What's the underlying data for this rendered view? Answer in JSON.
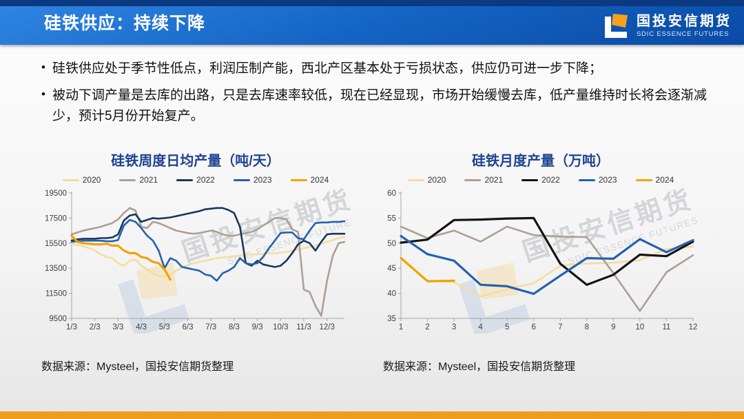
{
  "slide": {
    "title": "硅铁供应：持续下降",
    "logo": {
      "name_cn": "国投安信期货",
      "name_en": "SDIC ESSENCE FUTURES"
    },
    "bullets": [
      "硅铁供应处于季节性低点，利润压制产能，西北产区基本处于亏损状态，供应仍可进一步下降；",
      "被动下调产量是去库的出路，只是去库速率较低，现在已经显现，市场开始缓慢去库，低产量维持时长将会逐渐减少，预计5月份开始复产。"
    ],
    "captions": {
      "left": "数据来源：Mysteel，国投安信期货整理",
      "right": "数据来源：Mysteel，国投安信期货整理"
    },
    "watermark": {
      "text_cn": "国投安信期货",
      "text_en": "SDIC ESSENCE FUTURES"
    },
    "colors": {
      "header_blue": "#0c3a82",
      "title_blue": "#1f4391",
      "accent_orange": "#ef9d1f",
      "logo_orange": "#f5a11c"
    }
  },
  "chart_data": [
    {
      "type": "line",
      "title": "硅铁周度日均产量（吨/天）",
      "legend_position": "top",
      "grid": false,
      "ylim": [
        9500,
        19500
      ],
      "yticks": [
        9500,
        11500,
        13500,
        15500,
        17500,
        19500
      ],
      "x_count": 48,
      "x_tick_labels": [
        "1/3",
        "2/3",
        "3/3",
        "4/3",
        "5/3",
        "6/3",
        "7/3",
        "8/3",
        "9/3",
        "10/3",
        "11/3",
        "12/3"
      ],
      "x_tick_indices": [
        0,
        4,
        8,
        12,
        16,
        20,
        24,
        28,
        32,
        36,
        40,
        44
      ],
      "series": [
        {
          "name": "2020",
          "color": "#f4dda0",
          "values": [
            15450,
            15350,
            15250,
            15100,
            14900,
            14600,
            14400,
            14300,
            13900,
            13700,
            14100,
            14200,
            13700,
            13400,
            13100,
            12900,
            12850,
            13000,
            13300,
            13600,
            13750,
            13900,
            14000,
            14100,
            14200,
            14300,
            14350,
            14400,
            14450,
            14500,
            14550,
            14600,
            14600,
            14650,
            14700,
            14700,
            14750,
            14800,
            14900,
            15000,
            15100,
            15200,
            15300,
            15450,
            15600,
            15750,
            15900,
            16000
          ]
        },
        {
          "name": "2021",
          "color": "#ac9f93",
          "values": [
            16200,
            16350,
            16500,
            16600,
            16700,
            16800,
            16950,
            17100,
            17400,
            17900,
            18300,
            18100,
            16800,
            16700,
            17200,
            17100,
            16900,
            16700,
            16500,
            16400,
            16300,
            16250,
            16300,
            16400,
            16500,
            16400,
            16200,
            16100,
            16100,
            16200,
            16300,
            16400,
            16600,
            16900,
            17200,
            17500,
            17500,
            17400,
            16600,
            16400,
            11800,
            11600,
            10500,
            9700,
            12500,
            14500,
            15500,
            15600
          ]
        },
        {
          "name": "2022",
          "color": "#17375e",
          "values": [
            15700,
            15800,
            15850,
            15850,
            15850,
            15900,
            15900,
            15950,
            16200,
            17300,
            17700,
            17800,
            17200,
            17350,
            17500,
            17450,
            17500,
            17550,
            17650,
            17750,
            17850,
            17950,
            18050,
            18200,
            18250,
            18300,
            18300,
            18150,
            17900,
            16800,
            13900,
            13700,
            14100,
            13800,
            13700,
            13600,
            13700,
            14100,
            14700,
            15400,
            15700,
            15500,
            14900,
            15600,
            16200,
            16250,
            16250,
            16250
          ]
        },
        {
          "name": "2023",
          "color": "#2361b0",
          "values": [
            15600,
            15650,
            15700,
            15700,
            15700,
            15700,
            15650,
            15650,
            15750,
            16900,
            17350,
            17200,
            16700,
            16100,
            15700,
            14900,
            13500,
            14300,
            14100,
            13600,
            13500,
            13400,
            13300,
            13000,
            12900,
            12500,
            13100,
            13300,
            13600,
            14300,
            13900,
            13800,
            13900,
            14400,
            15100,
            15700,
            16300,
            16350,
            16350,
            15900,
            15800,
            16500,
            17100,
            17150,
            17150,
            17200,
            17200,
            17250
          ]
        },
        {
          "name": "2024",
          "color": "#f2a200",
          "emphasis": true,
          "values": [
            16100,
            15600,
            15500,
            15450,
            15400,
            15400,
            15450,
            15300,
            15300,
            14900,
            14700,
            14700,
            14400,
            14300,
            14000,
            13900,
            13400,
            12600
          ]
        }
      ]
    },
    {
      "type": "line",
      "title": "硅铁月度产量（万吨）",
      "legend_position": "top",
      "grid": false,
      "ylim": [
        35,
        60
      ],
      "yticks": [
        35,
        40,
        45,
        50,
        55,
        60
      ],
      "x_count": 12,
      "x_tick_labels": [
        "1",
        "2",
        "3",
        "4",
        "5",
        "6",
        "7",
        "8",
        "9",
        "10",
        "11",
        "12"
      ],
      "x_tick_indices": [
        0,
        1,
        2,
        3,
        4,
        5,
        6,
        7,
        8,
        9,
        10,
        11
      ],
      "series": [
        {
          "name": "2020",
          "color": "#f4dda0",
          "values": [
            47.2,
            42.5,
            42.2,
            39.4,
            40.8,
            42.0,
            45.5,
            45.9,
            46.1,
            46.6,
            48.8,
            49.3
          ]
        },
        {
          "name": "2021",
          "color": "#ac9f93",
          "values": [
            53.3,
            51.0,
            52.5,
            50.3,
            53.3,
            51.6,
            51.3,
            51.2,
            44.0,
            36.5,
            44.2,
            47.6
          ]
        },
        {
          "name": "2022",
          "color": "#141414",
          "emphasis": true,
          "values": [
            50.1,
            50.7,
            54.6,
            54.7,
            54.9,
            55.0,
            45.9,
            41.7,
            43.7,
            47.7,
            47.4,
            50.3
          ]
        },
        {
          "name": "2023",
          "color": "#2361b0",
          "emphasis": true,
          "values": [
            51.4,
            47.8,
            46.5,
            41.7,
            41.4,
            39.9,
            43.5,
            47.0,
            46.9,
            50.8,
            48.2,
            50.6
          ]
        },
        {
          "name": "2024",
          "color": "#f2a200",
          "emphasis": true,
          "values": [
            47.0,
            42.4,
            42.5
          ]
        }
      ]
    }
  ]
}
